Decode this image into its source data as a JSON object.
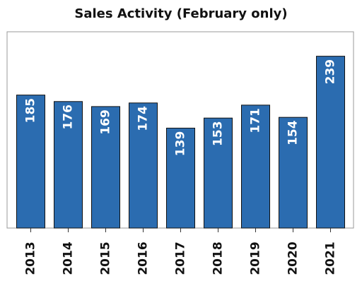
{
  "chart_data": {
    "type": "bar",
    "title": "Sales Activity (February only)",
    "categories": [
      "2013",
      "2014",
      "2015",
      "2016",
      "2017",
      "2018",
      "2019",
      "2020",
      "2021"
    ],
    "values": [
      185,
      176,
      169,
      174,
      139,
      153,
      171,
      154,
      239
    ],
    "color": "#2b6cb0",
    "ylim": [
      0,
      273
    ]
  }
}
